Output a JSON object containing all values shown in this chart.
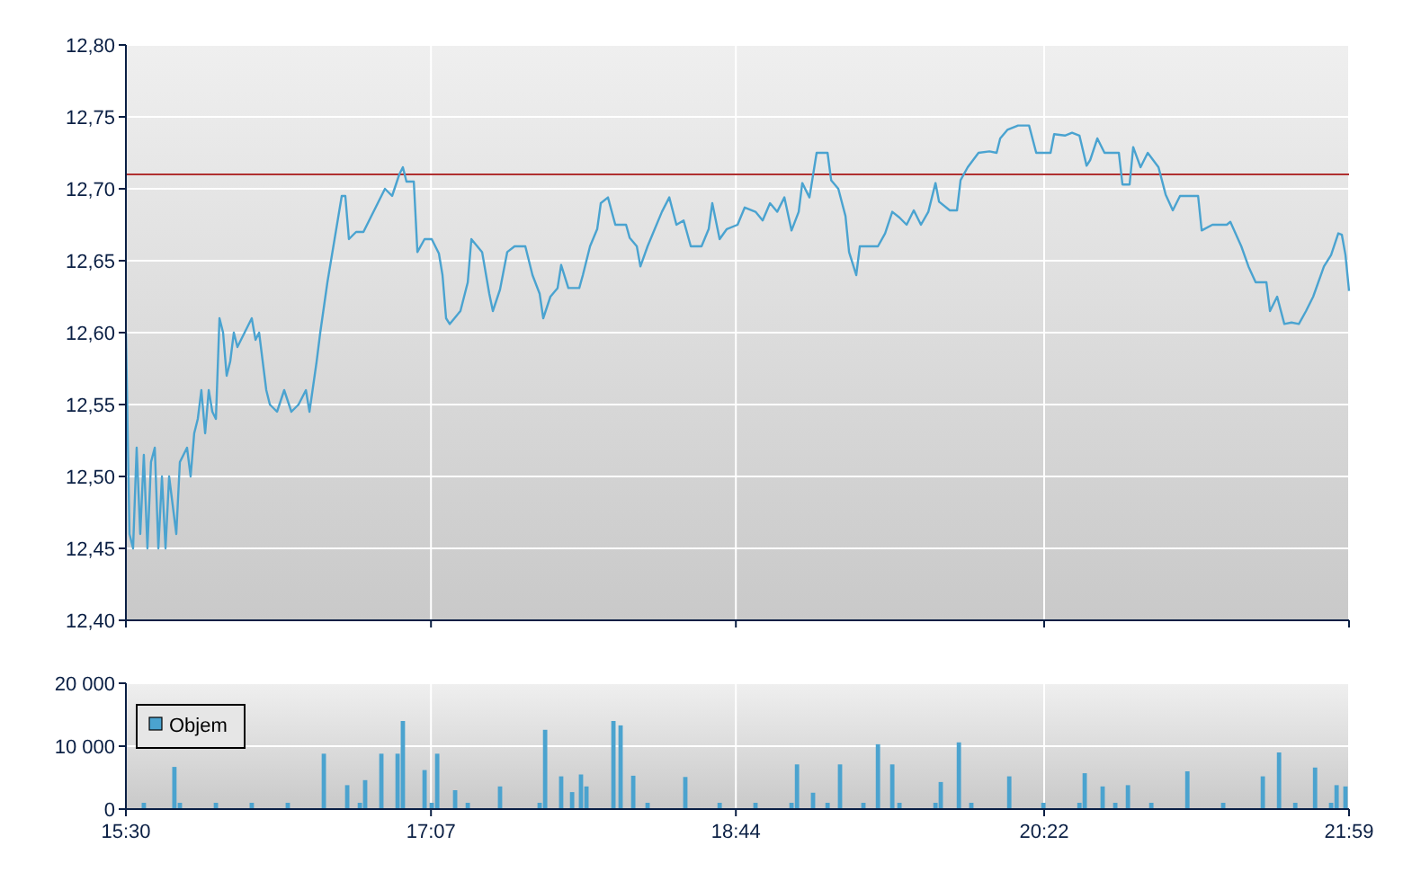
{
  "chart_data": [
    {
      "type": "line",
      "tick_labels": "y",
      "grid": true,
      "xlim": [
        15.5,
        21.983
      ],
      "ylim": [
        12.4,
        12.8
      ],
      "xticks": [
        {
          "value": 15.5,
          "label": null
        },
        {
          "value": 17.117,
          "label": null
        },
        {
          "value": 18.733,
          "label": null
        },
        {
          "value": 20.367,
          "label": null
        },
        {
          "value": 21.983,
          "label": null
        }
      ],
      "yticks": [
        {
          "value": 12.4,
          "label": "12,40"
        },
        {
          "value": 12.45,
          "label": "12,45"
        },
        {
          "value": 12.5,
          "label": "12,50"
        },
        {
          "value": 12.55,
          "label": "12,55"
        },
        {
          "value": 12.6,
          "label": "12,60"
        },
        {
          "value": 12.65,
          "label": "12,65"
        },
        {
          "value": 12.7,
          "label": "12,70"
        },
        {
          "value": 12.75,
          "label": "12,75"
        },
        {
          "value": 12.8,
          "label": "12,80"
        }
      ],
      "ref_lines": [
        {
          "axis": "y",
          "value": 12.71,
          "label": null,
          "color": "#b03030"
        }
      ],
      "x": [
        15.5,
        15.519,
        15.538,
        15.557,
        15.576,
        15.595,
        15.614,
        15.633,
        15.653,
        15.672,
        15.691,
        15.71,
        15.729,
        15.748,
        15.767,
        15.786,
        15.824,
        15.843,
        15.862,
        15.881,
        15.9,
        15.92,
        15.939,
        15.958,
        15.977,
        15.996,
        16.015,
        16.034,
        16.053,
        16.072,
        16.091,
        16.129,
        16.167,
        16.187,
        16.206,
        16.244,
        16.263,
        16.301,
        16.339,
        16.377,
        16.415,
        16.454,
        16.473,
        16.511,
        16.53,
        16.568,
        16.606,
        16.644,
        16.663,
        16.682,
        16.72,
        16.759,
        16.797,
        16.835,
        16.873,
        16.911,
        16.949,
        16.968,
        16.987,
        17.026,
        17.045,
        17.083,
        17.121,
        17.159,
        17.178,
        17.197,
        17.216,
        17.273,
        17.312,
        17.331,
        17.388,
        17.426,
        17.445,
        17.483,
        17.521,
        17.56,
        17.617,
        17.655,
        17.693,
        17.712,
        17.75,
        17.788,
        17.807,
        17.845,
        17.903,
        17.922,
        17.96,
        17.998,
        18.017,
        18.055,
        18.094,
        18.151,
        18.17,
        18.208,
        18.227,
        18.265,
        18.303,
        18.341,
        18.38,
        18.418,
        18.456,
        18.494,
        18.551,
        18.589,
        18.608,
        18.647,
        18.685,
        18.742,
        18.78,
        18.837,
        18.875,
        18.914,
        18.952,
        18.99,
        19.028,
        19.066,
        19.085,
        19.123,
        19.161,
        19.219,
        19.238,
        19.276,
        19.314,
        19.333,
        19.352,
        19.371,
        19.39,
        19.428,
        19.486,
        19.524,
        19.562,
        19.6,
        19.638,
        19.676,
        19.714,
        19.753,
        19.791,
        19.81,
        19.867,
        19.905,
        19.924,
        19.962,
        20.019,
        20.077,
        20.115,
        20.134,
        20.172,
        20.229,
        20.287,
        20.325,
        20.401,
        20.42,
        20.477,
        20.515,
        20.554,
        20.592,
        20.611,
        20.649,
        20.687,
        20.763,
        20.782,
        20.82,
        20.839,
        20.878,
        20.916,
        20.973,
        21.011,
        21.049,
        21.087,
        21.183,
        21.202,
        21.259,
        21.335,
        21.354,
        21.412,
        21.45,
        21.488,
        21.545,
        21.564,
        21.602,
        21.64,
        21.678,
        21.717,
        21.755,
        21.793,
        21.85,
        21.888,
        21.926,
        21.945,
        21.964,
        21.983
      ],
      "series": [
        {
          "color": "#4aa3d0",
          "values": [
            12.6,
            12.46,
            12.45,
            12.52,
            12.46,
            12.515,
            12.45,
            12.51,
            12.52,
            12.45,
            12.5,
            12.45,
            12.5,
            12.48,
            12.46,
            12.51,
            12.52,
            12.5,
            12.53,
            12.54,
            12.56,
            12.53,
            12.56,
            12.545,
            12.54,
            12.61,
            12.6,
            12.57,
            12.58,
            12.6,
            12.59,
            12.6,
            12.61,
            12.595,
            12.6,
            12.56,
            12.55,
            12.545,
            12.56,
            12.545,
            12.55,
            12.56,
            12.545,
            12.58,
            12.6,
            12.635,
            12.665,
            12.695,
            12.695,
            12.665,
            12.67,
            12.67,
            12.68,
            12.69,
            12.7,
            12.695,
            12.71,
            12.715,
            12.705,
            12.705,
            12.656,
            12.665,
            12.665,
            12.655,
            12.64,
            12.61,
            12.606,
            12.615,
            12.635,
            12.665,
            12.656,
            12.627,
            12.615,
            12.63,
            12.656,
            12.66,
            12.66,
            12.64,
            12.627,
            12.61,
            12.625,
            12.631,
            12.647,
            12.631,
            12.631,
            12.64,
            12.66,
            12.672,
            12.69,
            12.694,
            12.675,
            12.675,
            12.666,
            12.66,
            12.646,
            12.66,
            12.672,
            12.684,
            12.694,
            12.675,
            12.678,
            12.66,
            12.66,
            12.672,
            12.69,
            12.665,
            12.672,
            12.675,
            12.687,
            12.684,
            12.678,
            12.69,
            12.684,
            12.694,
            12.671,
            12.684,
            12.704,
            12.694,
            12.725,
            12.725,
            12.706,
            12.7,
            12.681,
            12.656,
            12.648,
            12.64,
            12.66,
            12.66,
            12.66,
            12.669,
            12.684,
            12.68,
            12.675,
            12.685,
            12.675,
            12.684,
            12.704,
            12.691,
            12.685,
            12.685,
            12.706,
            12.715,
            12.725,
            12.726,
            12.725,
            12.735,
            12.741,
            12.744,
            12.744,
            12.725,
            12.725,
            12.738,
            12.737,
            12.739,
            12.737,
            12.716,
            12.72,
            12.735,
            12.725,
            12.725,
            12.703,
            12.703,
            12.729,
            12.715,
            12.725,
            12.715,
            12.696,
            12.685,
            12.695,
            12.695,
            12.671,
            12.675,
            12.675,
            12.677,
            12.66,
            12.646,
            12.635,
            12.635,
            12.615,
            12.625,
            12.606,
            12.607,
            12.606,
            12.615,
            12.625,
            12.646,
            12.654,
            12.669,
            12.668,
            12.654,
            12.629
          ]
        }
      ]
    },
    {
      "type": "bar",
      "grid": true,
      "legend": "left",
      "xlim": [
        15.5,
        21.983
      ],
      "ylim": [
        0,
        20000
      ],
      "xticks": [
        {
          "value": 15.5,
          "label": "15:30"
        },
        {
          "value": 17.117,
          "label": "17:07"
        },
        {
          "value": 18.733,
          "label": "18:44"
        },
        {
          "value": 20.367,
          "label": "20:22"
        },
        {
          "value": 21.983,
          "label": "21:59"
        }
      ],
      "yticks": [
        0,
        {
          "value": 10000,
          "label": "10 000"
        },
        {
          "value": 20000,
          "label": "20 000"
        }
      ],
      "x": [
        15.595,
        15.757,
        15.786,
        15.977,
        16.167,
        16.358,
        16.549,
        16.673,
        16.74,
        16.768,
        16.854,
        16.94,
        16.968,
        17.083,
        17.121,
        17.15,
        17.245,
        17.312,
        17.483,
        17.693,
        17.722,
        17.807,
        17.865,
        17.912,
        17.941,
        18.084,
        18.122,
        18.189,
        18.265,
        18.465,
        18.647,
        18.837,
        19.028,
        19.057,
        19.142,
        19.219,
        19.285,
        19.409,
        19.486,
        19.562,
        19.6,
        19.791,
        19.819,
        19.915,
        19.981,
        20.182,
        20.363,
        20.554,
        20.582,
        20.677,
        20.744,
        20.811,
        20.935,
        21.126,
        21.316,
        21.526,
        21.612,
        21.698,
        21.803,
        21.888,
        21.917,
        21.964
      ],
      "series": [
        {
          "name": "Objem",
          "color": "#4ba3cf",
          "values": [
            1000,
            6700,
            1000,
            1000,
            1000,
            1000,
            8800,
            3800,
            1000,
            4600,
            8800,
            8800,
            14000,
            6200,
            1000,
            8800,
            3000,
            1000,
            3600,
            1000,
            12600,
            5200,
            2700,
            5500,
            3600,
            14000,
            13300,
            5300,
            1000,
            5100,
            1000,
            1000,
            1000,
            7100,
            2600,
            1000,
            7100,
            1000,
            10300,
            7100,
            1000,
            1000,
            4300,
            10600,
            1000,
            5200,
            1000,
            1000,
            5700,
            3600,
            1000,
            3800,
            1000,
            6000,
            1000,
            5200,
            9000,
            1000,
            6600,
            1000,
            3800,
            3600
          ]
        }
      ]
    }
  ]
}
